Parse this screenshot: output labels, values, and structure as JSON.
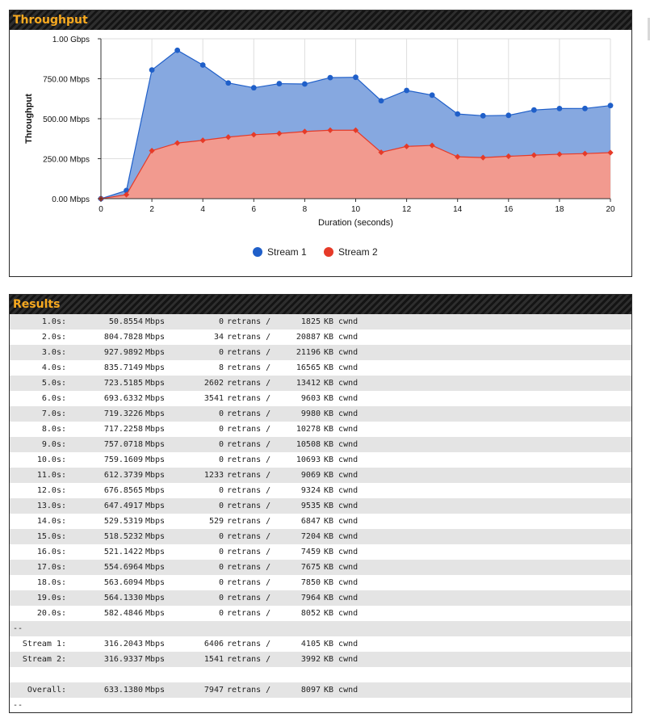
{
  "panels": {
    "throughput_title": "Throughput",
    "results_title": "Results"
  },
  "chart_data": {
    "type": "area",
    "ylabel": "Throughput",
    "xlabel": "Duration (seconds)",
    "x": [
      0,
      1,
      2,
      3,
      4,
      5,
      6,
      7,
      8,
      9,
      10,
      11,
      12,
      13,
      14,
      15,
      16,
      17,
      18,
      19,
      20
    ],
    "xticks": [
      "0",
      "2",
      "4",
      "6",
      "8",
      "10",
      "12",
      "14",
      "16",
      "18",
      "20"
    ],
    "yticks": [
      "0.00 Mbps",
      "250.00 Mbps",
      "500.00 Mbps",
      "750.00 Mbps",
      "1.00 Gbps"
    ],
    "ylim": [
      0,
      1000
    ],
    "xlim": [
      0,
      20
    ],
    "grid": true,
    "legend_position": "bottom",
    "series": [
      {
        "name": "Stream 1",
        "color": "#1f5fc9",
        "fill": "#86a8e0",
        "values": [
          0,
          50.8554,
          804.7828,
          927.9892,
          835.7149,
          723.5185,
          693.6332,
          719.3226,
          717.2258,
          757.0718,
          759.1609,
          612.3739,
          676.8565,
          647.4917,
          529.5319,
          518.5232,
          521.1422,
          554.6964,
          563.6094,
          564.133,
          582.4846
        ]
      },
      {
        "name": "Stream 2",
        "color": "#e63a28",
        "fill": "#f29a8f",
        "values": [
          0,
          25,
          300,
          348,
          365,
          385,
          400,
          408,
          420,
          428,
          428,
          290,
          327,
          333,
          262,
          257,
          265,
          272,
          278,
          282,
          288
        ]
      }
    ]
  },
  "results": {
    "rows": [
      {
        "time": "1.0s:",
        "rate": "50.8554",
        "unit": "Mbps",
        "retrans": "0",
        "ret_label": "retrans /",
        "cwnd": "1825",
        "cwnd_unit": "KB cwnd"
      },
      {
        "time": "2.0s:",
        "rate": "804.7828",
        "unit": "Mbps",
        "retrans": "34",
        "ret_label": "retrans /",
        "cwnd": "20887",
        "cwnd_unit": "KB cwnd"
      },
      {
        "time": "3.0s:",
        "rate": "927.9892",
        "unit": "Mbps",
        "retrans": "0",
        "ret_label": "retrans /",
        "cwnd": "21196",
        "cwnd_unit": "KB cwnd"
      },
      {
        "time": "4.0s:",
        "rate": "835.7149",
        "unit": "Mbps",
        "retrans": "8",
        "ret_label": "retrans /",
        "cwnd": "16565",
        "cwnd_unit": "KB cwnd"
      },
      {
        "time": "5.0s:",
        "rate": "723.5185",
        "unit": "Mbps",
        "retrans": "2602",
        "ret_label": "retrans /",
        "cwnd": "13412",
        "cwnd_unit": "KB cwnd"
      },
      {
        "time": "6.0s:",
        "rate": "693.6332",
        "unit": "Mbps",
        "retrans": "3541",
        "ret_label": "retrans /",
        "cwnd": "9603",
        "cwnd_unit": "KB cwnd"
      },
      {
        "time": "7.0s:",
        "rate": "719.3226",
        "unit": "Mbps",
        "retrans": "0",
        "ret_label": "retrans /",
        "cwnd": "9980",
        "cwnd_unit": "KB cwnd"
      },
      {
        "time": "8.0s:",
        "rate": "717.2258",
        "unit": "Mbps",
        "retrans": "0",
        "ret_label": "retrans /",
        "cwnd": "10278",
        "cwnd_unit": "KB cwnd"
      },
      {
        "time": "9.0s:",
        "rate": "757.0718",
        "unit": "Mbps",
        "retrans": "0",
        "ret_label": "retrans /",
        "cwnd": "10508",
        "cwnd_unit": "KB cwnd"
      },
      {
        "time": "10.0s:",
        "rate": "759.1609",
        "unit": "Mbps",
        "retrans": "0",
        "ret_label": "retrans /",
        "cwnd": "10693",
        "cwnd_unit": "KB cwnd"
      },
      {
        "time": "11.0s:",
        "rate": "612.3739",
        "unit": "Mbps",
        "retrans": "1233",
        "ret_label": "retrans /",
        "cwnd": "9069",
        "cwnd_unit": "KB cwnd"
      },
      {
        "time": "12.0s:",
        "rate": "676.8565",
        "unit": "Mbps",
        "retrans": "0",
        "ret_label": "retrans /",
        "cwnd": "9324",
        "cwnd_unit": "KB cwnd"
      },
      {
        "time": "13.0s:",
        "rate": "647.4917",
        "unit": "Mbps",
        "retrans": "0",
        "ret_label": "retrans /",
        "cwnd": "9535",
        "cwnd_unit": "KB cwnd"
      },
      {
        "time": "14.0s:",
        "rate": "529.5319",
        "unit": "Mbps",
        "retrans": "529",
        "ret_label": "retrans /",
        "cwnd": "6847",
        "cwnd_unit": "KB cwnd"
      },
      {
        "time": "15.0s:",
        "rate": "518.5232",
        "unit": "Mbps",
        "retrans": "0",
        "ret_label": "retrans /",
        "cwnd": "7204",
        "cwnd_unit": "KB cwnd"
      },
      {
        "time": "16.0s:",
        "rate": "521.1422",
        "unit": "Mbps",
        "retrans": "0",
        "ret_label": "retrans /",
        "cwnd": "7459",
        "cwnd_unit": "KB cwnd"
      },
      {
        "time": "17.0s:",
        "rate": "554.6964",
        "unit": "Mbps",
        "retrans": "0",
        "ret_label": "retrans /",
        "cwnd": "7675",
        "cwnd_unit": "KB cwnd"
      },
      {
        "time": "18.0s:",
        "rate": "563.6094",
        "unit": "Mbps",
        "retrans": "0",
        "ret_label": "retrans /",
        "cwnd": "7850",
        "cwnd_unit": "KB cwnd"
      },
      {
        "time": "19.0s:",
        "rate": "564.1330",
        "unit": "Mbps",
        "retrans": "0",
        "ret_label": "retrans /",
        "cwnd": "7964",
        "cwnd_unit": "KB cwnd"
      },
      {
        "time": "20.0s:",
        "rate": "582.4846",
        "unit": "Mbps",
        "retrans": "0",
        "ret_label": "retrans /",
        "cwnd": "8052",
        "cwnd_unit": "KB cwnd"
      }
    ],
    "separator": "--",
    "streams": [
      {
        "label": "Stream 1:",
        "rate": "316.2043",
        "unit": "Mbps",
        "retrans": "6406",
        "ret_label": "retrans /",
        "cwnd": "4105",
        "cwnd_unit": "KB cwnd"
      },
      {
        "label": "Stream 2:",
        "rate": "316.9337",
        "unit": "Mbps",
        "retrans": "1541",
        "ret_label": "retrans /",
        "cwnd": "3992",
        "cwnd_unit": "KB cwnd"
      }
    ],
    "overall": {
      "label": "Overall:",
      "rate": "633.1380",
      "unit": "Mbps",
      "retrans": "7947",
      "ret_label": "retrans /",
      "cwnd": "8097",
      "cwnd_unit": "KB cwnd"
    }
  }
}
